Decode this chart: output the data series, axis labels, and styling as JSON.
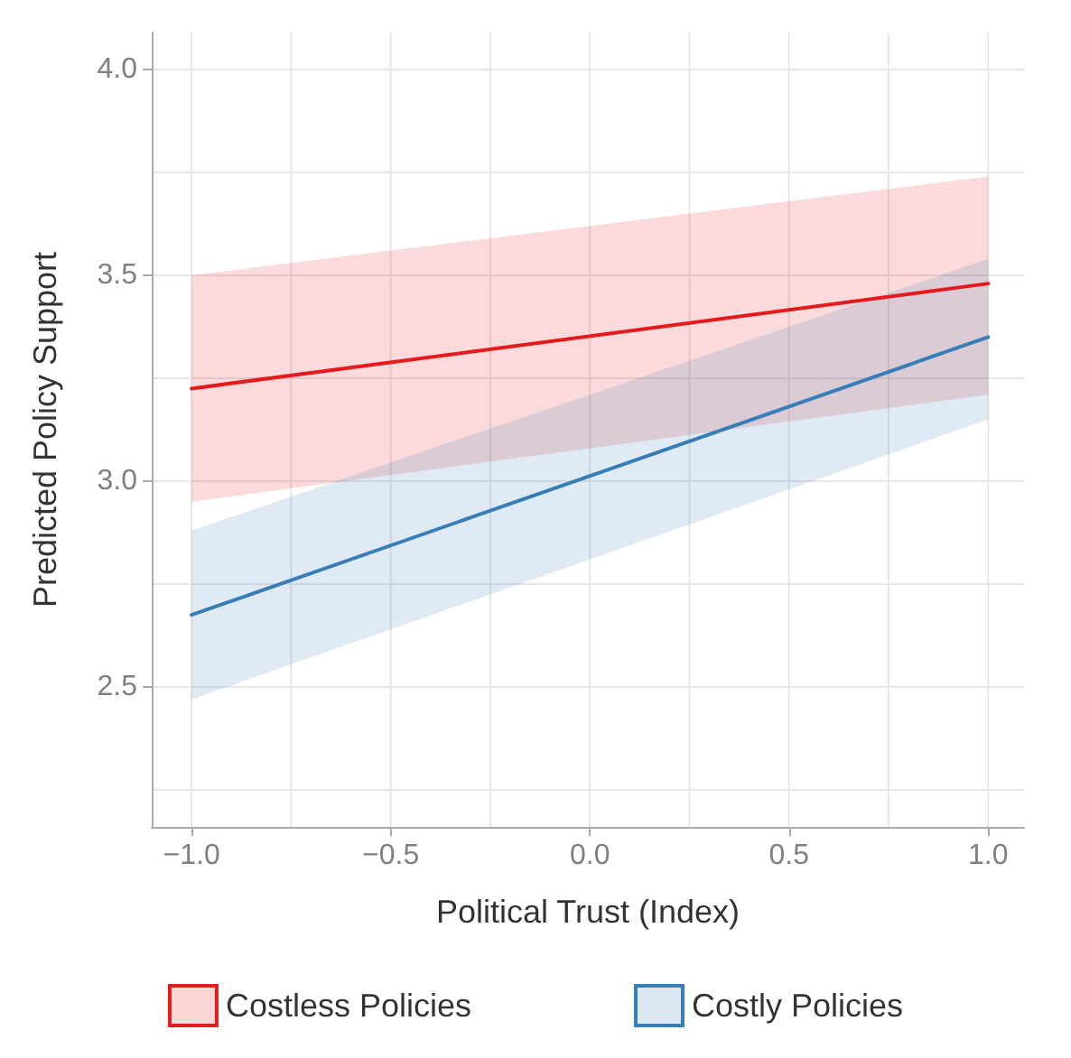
{
  "chart_data": {
    "type": "line",
    "xlabel": "Political Trust (Index)",
    "ylabel": "Predicted Policy Support",
    "x": [
      -1,
      1
    ],
    "series": [
      {
        "name": "Costless Policies",
        "color": "#e41a1c",
        "values": [
          3.225,
          3.48
        ],
        "lower": [
          2.95,
          3.21
        ],
        "upper": [
          3.5,
          3.74
        ]
      },
      {
        "name": "Costly Policies",
        "color": "#377eb8",
        "values": [
          2.675,
          3.35
        ],
        "lower": [
          2.47,
          3.15
        ],
        "upper": [
          2.88,
          3.54
        ]
      }
    ],
    "xlim": [
      -1.1,
      1.09
    ],
    "xticks": [
      {
        "value": -1,
        "label": "−1.0"
      },
      {
        "value": -0.75,
        "label": null
      },
      {
        "value": -0.5,
        "label": "−0.5"
      },
      {
        "value": -0.25,
        "label": null
      },
      {
        "value": 0,
        "label": "0.0"
      },
      {
        "value": 0.25,
        "label": null
      },
      0.5,
      {
        "value": 0.75,
        "label": null
      },
      {
        "value": 1,
        "label": "1.0"
      }
    ],
    "ylim": [
      2.16,
      4.09
    ],
    "yticks": [
      {
        "value": 2.25,
        "label": null
      },
      2.5,
      {
        "value": 2.75,
        "label": null
      },
      {
        "value": 3,
        "label": "3.0"
      },
      {
        "value": 3.25,
        "label": null
      },
      3.5,
      {
        "value": 3.75,
        "label": null
      },
      {
        "value": 4,
        "label": "4.0"
      }
    ],
    "grid": true,
    "legend": "bottom",
    "marker": "none",
    "line_style": "solid"
  }
}
